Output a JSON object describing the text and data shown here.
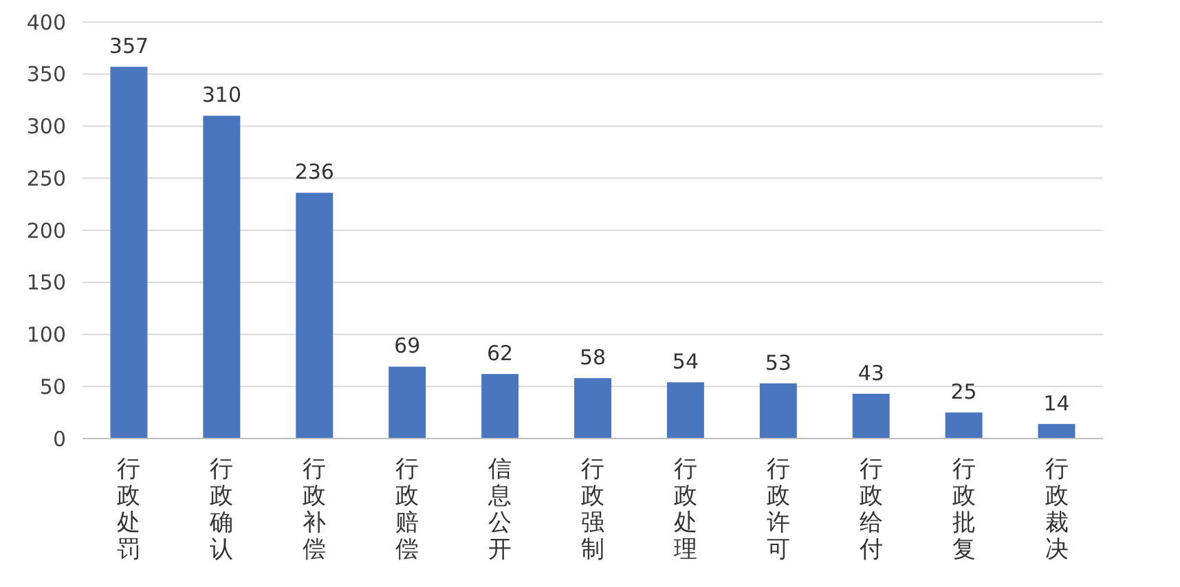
{
  "chart_data": {
    "type": "bar",
    "categories": [
      "行政处罚",
      "行政确认",
      "行政补偿",
      "行政赔偿",
      "信息公开",
      "行政强制",
      "行政处理",
      "行政许可",
      "行政给付",
      "行政批复",
      "行政裁决"
    ],
    "values": [
      357,
      310,
      236,
      69,
      62,
      58,
      54,
      53,
      43,
      25,
      14
    ],
    "color": "#4a76c0",
    "ylim": [
      0,
      400
    ],
    "yticks": [
      0,
      50,
      100,
      150,
      200,
      250,
      300,
      350,
      400
    ],
    "grid": "y",
    "data_labels": true
  }
}
